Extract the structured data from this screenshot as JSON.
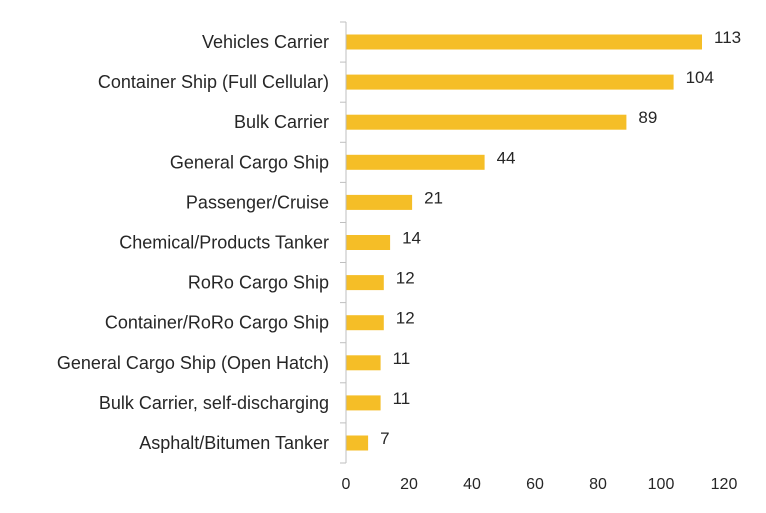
{
  "chart_data": {
    "type": "bar",
    "orientation": "horizontal",
    "title": "",
    "xlabel": "",
    "ylabel": "",
    "categories": [
      "Vehicles Carrier",
      "Container Ship (Full Cellular)",
      "Bulk Carrier",
      "General Cargo Ship",
      "Passenger/Cruise",
      "Chemical/Products Tanker",
      "RoRo Cargo Ship",
      "Container/RoRo Cargo Ship",
      "General Cargo Ship (Open Hatch)",
      "Bulk Carrier, self-discharging",
      "Asphalt/Bitumen Tanker"
    ],
    "values": [
      113,
      104,
      89,
      44,
      21,
      14,
      12,
      12,
      11,
      11,
      7
    ],
    "data_labels": [
      "113",
      "104",
      "89",
      "44",
      "21",
      "14",
      "12",
      "12",
      "11",
      "11",
      "7"
    ],
    "xlim": [
      0,
      120
    ],
    "xticks": [
      0,
      20,
      40,
      60,
      80,
      100,
      120
    ],
    "xtick_labels": [
      "0",
      "20",
      "40",
      "60",
      "80",
      "100",
      "120"
    ],
    "grid": false,
    "legend": "none",
    "colors": {
      "bar": "#F5BE27",
      "axis": "#BFBFBF",
      "text": "#262626"
    }
  }
}
